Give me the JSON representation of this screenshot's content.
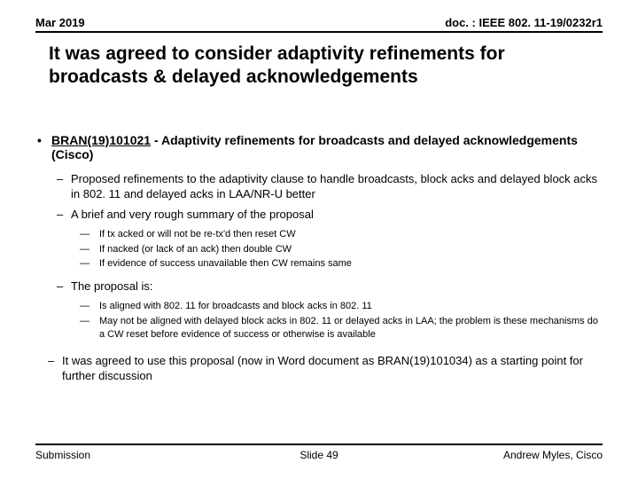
{
  "header": {
    "date": "Mar 2019",
    "docref": "doc. : IEEE 802. 11-19/0232r1"
  },
  "title": "It was agreed to consider adaptivity refinements for broadcasts & delayed acknowledgements",
  "main_bullet": {
    "ref": "BRAN(19)101021",
    "rest": " - Adaptivity refinements for broadcasts and delayed acknowledgements (Cisco)"
  },
  "sub1_1": "Proposed refinements to the adaptivity clause to handle broadcasts, block acks and delayed block acks in 802. 11 and delayed acks in LAA/NR-U better",
  "sub1_2": "A brief and very rough summary of the proposal",
  "sub2_1": "If tx acked or will not be re-tx'd then reset CW",
  "sub2_2": "If nacked (or lack of an ack) then double CW",
  "sub2_3": "If evidence of success unavailable then CW remains same",
  "sub1_3": "The proposal is:",
  "sub2_4": "Is aligned with 802. 11 for broadcasts and block acks in 802. 11",
  "sub2_5": "May not be aligned with delayed block acks in 802. 11 or delayed acks in LAA; the problem is these mechanisms do a CW reset before evidence of success or otherwise is available",
  "sub1_out": "It was agreed to use this proposal (now in Word document as BRAN(19)101034) as a starting point for further discussion",
  "footer": {
    "left": "Submission",
    "center": "Slide 49",
    "right": "Andrew Myles, Cisco"
  },
  "colors": {
    "text": "#000000",
    "background": "#ffffff",
    "rule": "#000000"
  }
}
